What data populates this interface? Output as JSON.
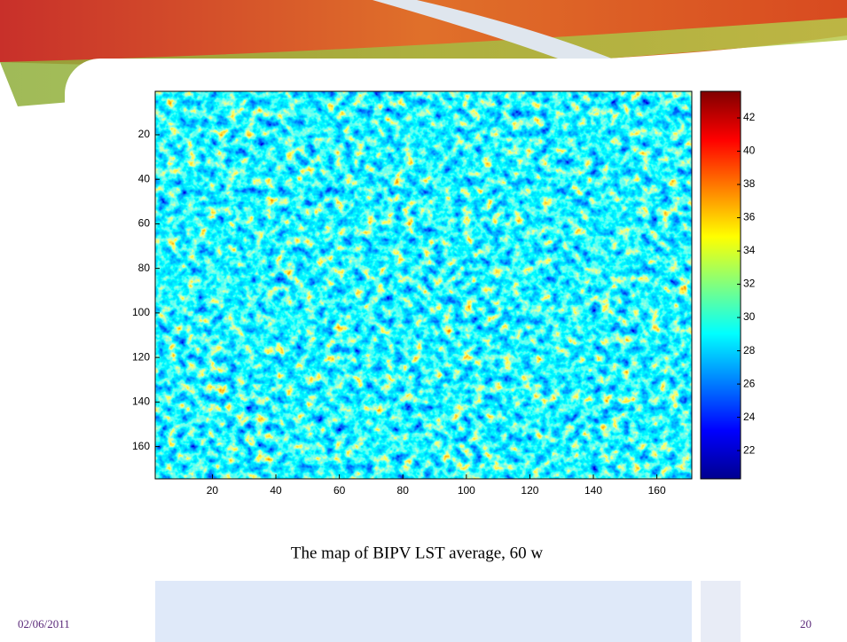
{
  "figure": {
    "xlim": [
      2,
      171
    ],
    "ylim": [
      0.5,
      174.5
    ],
    "xticks": [
      20,
      40,
      60,
      80,
      100,
      120,
      140,
      160
    ],
    "yticks": [
      20,
      40,
      60,
      80,
      100,
      120,
      140,
      160
    ],
    "colorbar": {
      "lim": [
        20.3,
        43.6
      ],
      "ticks": [
        22,
        24,
        26,
        28,
        30,
        32,
        34,
        36,
        38,
        40,
        42
      ]
    }
  },
  "caption": "The map of  BIPV LST average, 60 w",
  "footer": {
    "date": "02/06/2011",
    "page": "20"
  }
}
